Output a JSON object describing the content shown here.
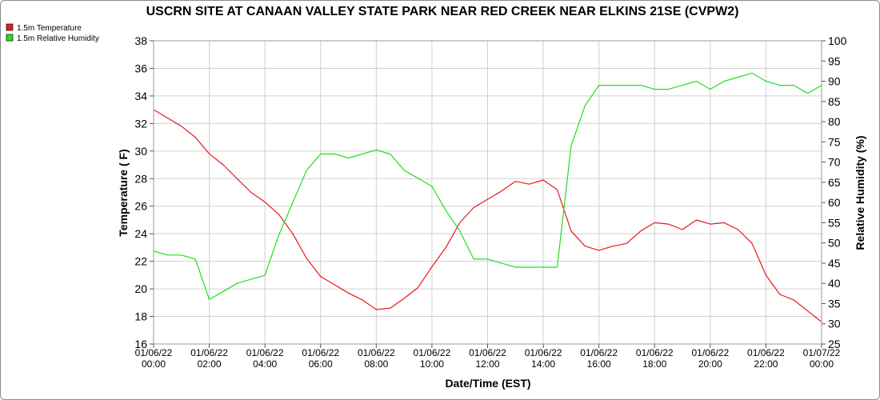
{
  "chart_data": {
    "type": "line",
    "title": "USCRN SITE AT CANAAN VALLEY STATE PARK NEAR RED CREEK NEAR ELKINS 21SE (CVPW2)",
    "xlabel": "Date/Time (EST)",
    "ylabel_left": "Temperature ( F)",
    "ylabel_right": "Relative Humidity (%)",
    "x_range_hours": [
      0,
      24
    ],
    "ylim_left": [
      16,
      38
    ],
    "ylim_right": [
      25,
      100
    ],
    "yticks_left": [
      "16",
      "18",
      "20",
      "22",
      "24",
      "26",
      "28",
      "30",
      "32",
      "34",
      "36",
      "38"
    ],
    "yticks_right": [
      "25",
      "30",
      "35",
      "40",
      "45",
      "50",
      "55",
      "60",
      "65",
      "70",
      "75",
      "80",
      "85",
      "90",
      "95",
      "100"
    ],
    "xticks": [
      {
        "date": "01/06/22",
        "time": "00:00"
      },
      {
        "date": "01/06/22",
        "time": "02:00"
      },
      {
        "date": "01/06/22",
        "time": "04:00"
      },
      {
        "date": "01/06/22",
        "time": "06:00"
      },
      {
        "date": "01/06/22",
        "time": "08:00"
      },
      {
        "date": "01/06/22",
        "time": "10:00"
      },
      {
        "date": "01/06/22",
        "time": "12:00"
      },
      {
        "date": "01/06/22",
        "time": "14:00"
      },
      {
        "date": "01/06/22",
        "time": "16:00"
      },
      {
        "date": "01/06/22",
        "time": "18:00"
      },
      {
        "date": "01/06/22",
        "time": "20:00"
      },
      {
        "date": "01/06/22",
        "time": "22:00"
      },
      {
        "date": "01/07/22",
        "time": "00:00"
      }
    ],
    "grid": true,
    "legend_position": "top-left",
    "series": [
      {
        "name": "1.5m Temperature",
        "axis": "left",
        "color": "#e8181c",
        "x": [
          0,
          0.5,
          1,
          1.5,
          2,
          2.5,
          3,
          3.5,
          4,
          4.5,
          5,
          5.5,
          6,
          6.5,
          7,
          7.5,
          8,
          8.5,
          9,
          9.5,
          10,
          10.5,
          11,
          11.5,
          12,
          12.5,
          13,
          13.5,
          14,
          14.5,
          15,
          15.5,
          16,
          16.5,
          17,
          17.5,
          18,
          18.5,
          19,
          19.5,
          20,
          20.5,
          21,
          21.5,
          22,
          22.5,
          23,
          23.5,
          24
        ],
        "values": [
          33.0,
          32.4,
          31.8,
          31.0,
          29.8,
          29.0,
          28.0,
          27.0,
          26.3,
          25.4,
          24.0,
          22.2,
          20.9,
          20.3,
          19.7,
          19.2,
          18.5,
          18.6,
          19.3,
          20.1,
          21.6,
          23.0,
          24.8,
          25.9,
          26.5,
          27.1,
          27.8,
          27.6,
          27.9,
          27.2,
          24.2,
          23.1,
          22.8,
          23.1,
          23.3,
          24.2,
          24.8,
          24.7,
          24.3,
          25.0,
          24.7,
          24.8,
          24.3,
          23.3,
          21.0,
          19.6,
          19.2,
          18.4,
          17.6
        ]
      },
      {
        "name": "1.5m Relative Humidity",
        "axis": "right",
        "color": "#22dd22",
        "x": [
          0,
          0.5,
          1,
          1.5,
          2,
          2.5,
          3,
          3.5,
          4,
          4.5,
          5,
          5.5,
          6,
          6.5,
          7,
          7.5,
          8,
          8.5,
          9,
          9.5,
          10,
          10.5,
          11,
          11.5,
          12,
          12.5,
          13,
          13.5,
          14,
          14.5,
          15,
          15.5,
          16,
          16.5,
          17,
          17.5,
          18,
          18.5,
          19,
          19.5,
          20,
          20.5,
          21,
          21.5,
          22,
          22.5,
          23,
          23.5,
          24
        ],
        "values": [
          48,
          47,
          47,
          46,
          36,
          38,
          40,
          41,
          42,
          52,
          60,
          68,
          72,
          72,
          71,
          72,
          73,
          72,
          68,
          66,
          64,
          58,
          53,
          46,
          46,
          45,
          44,
          44,
          44,
          44,
          74,
          84,
          89,
          89,
          89,
          89,
          88,
          88,
          89,
          90,
          88,
          90,
          91,
          92,
          90,
          89,
          89,
          87,
          89
        ]
      }
    ]
  }
}
